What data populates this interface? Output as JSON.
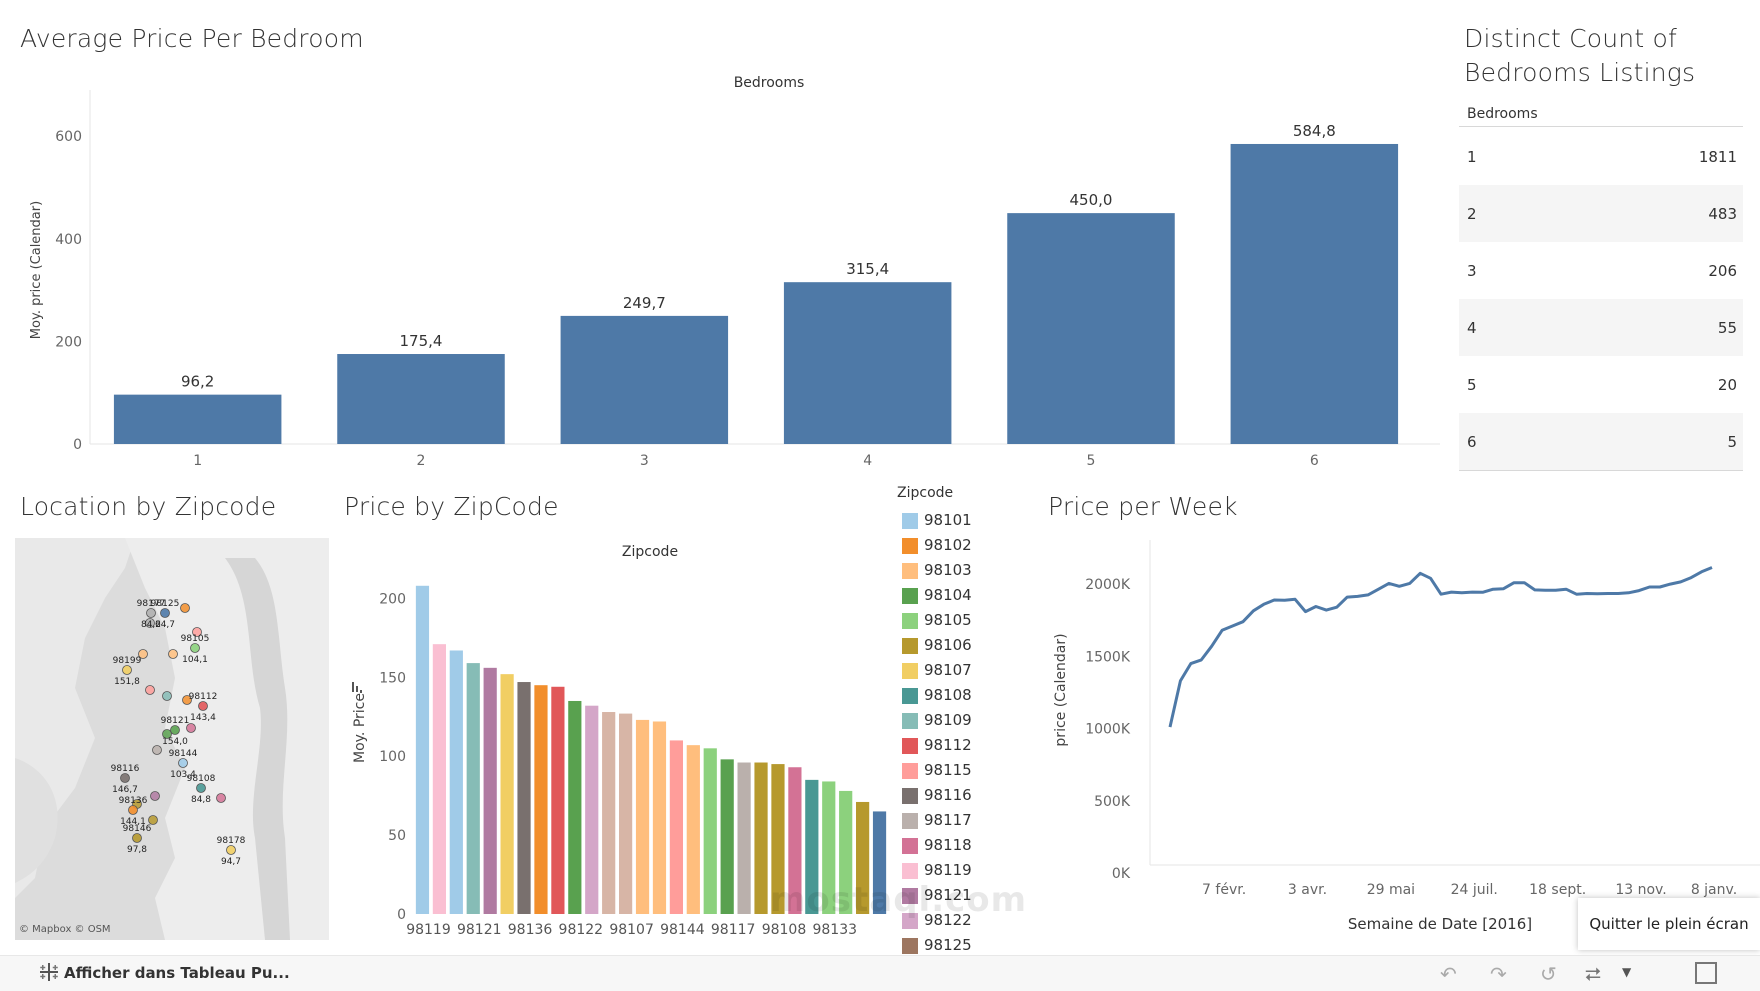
{
  "colors": {
    "bar_primary": "#4e79a7",
    "line": "#4e79a7",
    "table_stripe": "#f5f5f5",
    "map_bg": "#e6e6e6"
  },
  "panel_bedroom": {
    "title": "Average Price Per Bedroom",
    "chart_data": {
      "type": "bar",
      "title": "Bedrooms",
      "categories": [
        "1",
        "2",
        "3",
        "4",
        "5",
        "6"
      ],
      "values": [
        96.2,
        175.4,
        249.7,
        315.4,
        450.0,
        584.8
      ],
      "value_labels": [
        "96,2",
        "175,4",
        "249,7",
        "315,4",
        "450,0",
        "584,8"
      ],
      "ylabel": "Moy. price (Calendar)",
      "yticks": [
        0,
        200,
        400,
        600
      ],
      "ylim": [
        0,
        690
      ]
    }
  },
  "panel_count": {
    "title_line1": "Distinct Count of",
    "title_line2": "Bedrooms Listings",
    "header": "Bedrooms",
    "rows": [
      {
        "k": "1",
        "v": "1811"
      },
      {
        "k": "2",
        "v": "483"
      },
      {
        "k": "3",
        "v": "206"
      },
      {
        "k": "4",
        "v": "55"
      },
      {
        "k": "5",
        "v": "20"
      },
      {
        "k": "6",
        "v": "5"
      }
    ]
  },
  "panel_map": {
    "title": "Location by Zipcode",
    "attribution": "© Mapbox  © OSM",
    "points": [
      {
        "zip": "98177",
        "val": "84,2",
        "color": "#b0b0b0"
      },
      {
        "zip": "98125",
        "val": "64,7",
        "color": "#4e79a7"
      },
      {
        "zip": "98105",
        "val": "104,1",
        "color": "#8cd17d"
      },
      {
        "zip": "98199",
        "val": "151,8",
        "color": "#f1ce63"
      },
      {
        "zip": "98112",
        "val": "143,4",
        "color": "#e15759"
      },
      {
        "zip": "98121",
        "val": "154,0",
        "color": "#59a14f"
      },
      {
        "zip": "98144",
        "val": "103,4",
        "color": "#a0cbe8"
      },
      {
        "zip": "98116",
        "val": "146,7",
        "color": "#79706e"
      },
      {
        "zip": "98108",
        "val": "84,8",
        "color": "#499894"
      },
      {
        "zip": "98136",
        "val": "144,1",
        "color": "#f28e2b"
      },
      {
        "zip": "98146",
        "val": "97,8",
        "color": "#b6992d"
      },
      {
        "zip": "98178",
        "val": "94,7",
        "color": "#f1ce63"
      }
    ]
  },
  "panel_zip": {
    "title": "Price by ZipCode",
    "chart_data": {
      "type": "bar",
      "title": "Zipcode",
      "ylabel": "Moy. Price",
      "yticks": [
        0,
        50,
        100,
        150,
        200
      ],
      "ylim": [
        0,
        218
      ],
      "values": [
        208,
        171,
        167,
        159,
        156,
        152,
        147,
        145,
        144,
        135,
        132,
        128,
        127,
        123,
        122,
        110,
        107,
        105,
        98,
        96,
        96,
        95,
        93,
        85,
        84,
        78,
        71,
        65
      ],
      "colors": [
        "#a0cbe8",
        "#fabfd2",
        "#a0cbe8",
        "#86bcb6",
        "#b07aa1",
        "#f1ce63",
        "#79706e",
        "#f28e2b",
        "#e15759",
        "#59a14f",
        "#d4a6c8",
        "#d7b5a6",
        "#d7b5a6",
        "#ffbe7d",
        "#ffbe7d",
        "#ff9d9a",
        "#ffbe7d",
        "#8cd17d",
        "#59a14f",
        "#bab0ac",
        "#b6992d",
        "#b6992d",
        "#d37295",
        "#499894",
        "#8cd17d",
        "#8cd17d",
        "#b6992d",
        "#4e79a7"
      ],
      "xtick_labels": [
        "98119",
        "98121",
        "98136",
        "98122",
        "98107",
        "98144",
        "98117",
        "98108",
        "98133"
      ]
    }
  },
  "legend": {
    "title": "Zipcode",
    "items": [
      {
        "label": "98101",
        "color": "#a0cbe8"
      },
      {
        "label": "98102",
        "color": "#f28e2b"
      },
      {
        "label": "98103",
        "color": "#ffbe7d"
      },
      {
        "label": "98104",
        "color": "#59a14f"
      },
      {
        "label": "98105",
        "color": "#8cd17d"
      },
      {
        "label": "98106",
        "color": "#b6992d"
      },
      {
        "label": "98107",
        "color": "#f1ce63"
      },
      {
        "label": "98108",
        "color": "#499894"
      },
      {
        "label": "98109",
        "color": "#86bcb6"
      },
      {
        "label": "98112",
        "color": "#e15759"
      },
      {
        "label": "98115",
        "color": "#ff9d9a"
      },
      {
        "label": "98116",
        "color": "#79706e"
      },
      {
        "label": "98117",
        "color": "#bab0ac"
      },
      {
        "label": "98118",
        "color": "#d37295"
      },
      {
        "label": "98119",
        "color": "#fabfd2"
      },
      {
        "label": "98121",
        "color": "#b07aa1"
      },
      {
        "label": "98122",
        "color": "#d4a6c8"
      },
      {
        "label": "98125",
        "color": "#9d7660"
      }
    ]
  },
  "panel_week": {
    "title": "Price per Week",
    "chart_data": {
      "type": "line",
      "xlabel": "Semaine de Date [2016]",
      "ylabel": "price (Calendar)",
      "yticks": [
        0,
        500,
        1000,
        1500,
        2000
      ],
      "ytick_labels": [
        "0K",
        "500K",
        "1000K",
        "1500K",
        "2000K"
      ],
      "ylim": [
        0,
        2250
      ],
      "xtick_labels": [
        "7 févr.",
        "3 avr.",
        "29 mai",
        "24 juil.",
        "18 sept.",
        "13 nov.",
        "8 janv."
      ],
      "x_weeks": [
        0,
        1,
        2,
        3,
        4,
        5,
        6,
        7,
        8,
        9,
        10,
        11,
        12,
        13,
        14,
        15,
        16,
        17,
        18,
        19,
        20,
        21,
        22,
        23,
        24,
        25,
        26,
        27,
        28,
        29,
        30,
        31,
        32,
        33,
        34,
        35,
        36,
        37,
        38,
        39,
        40,
        41,
        42,
        43,
        44,
        45,
        46,
        47,
        48,
        49,
        50,
        51,
        52
      ],
      "values": [
        1010,
        1330,
        1450,
        1475,
        1570,
        1680,
        1710,
        1740,
        1815,
        1860,
        1890,
        1888,
        1895,
        1810,
        1845,
        1820,
        1840,
        1910,
        1915,
        1925,
        1965,
        2005,
        1985,
        2005,
        2075,
        2040,
        1930,
        1945,
        1940,
        1945,
        1943,
        1965,
        1968,
        2010,
        2010,
        1960,
        1958,
        1957,
        1965,
        1930,
        1935,
        1933,
        1935,
        1935,
        1940,
        1955,
        1980,
        1980,
        2000,
        2015,
        2045,
        2085,
        2115
      ]
    }
  },
  "footer": {
    "view_label": "Afficher dans Tableau Pu...",
    "exit_fullscreen": "Quitter le plein écran"
  }
}
